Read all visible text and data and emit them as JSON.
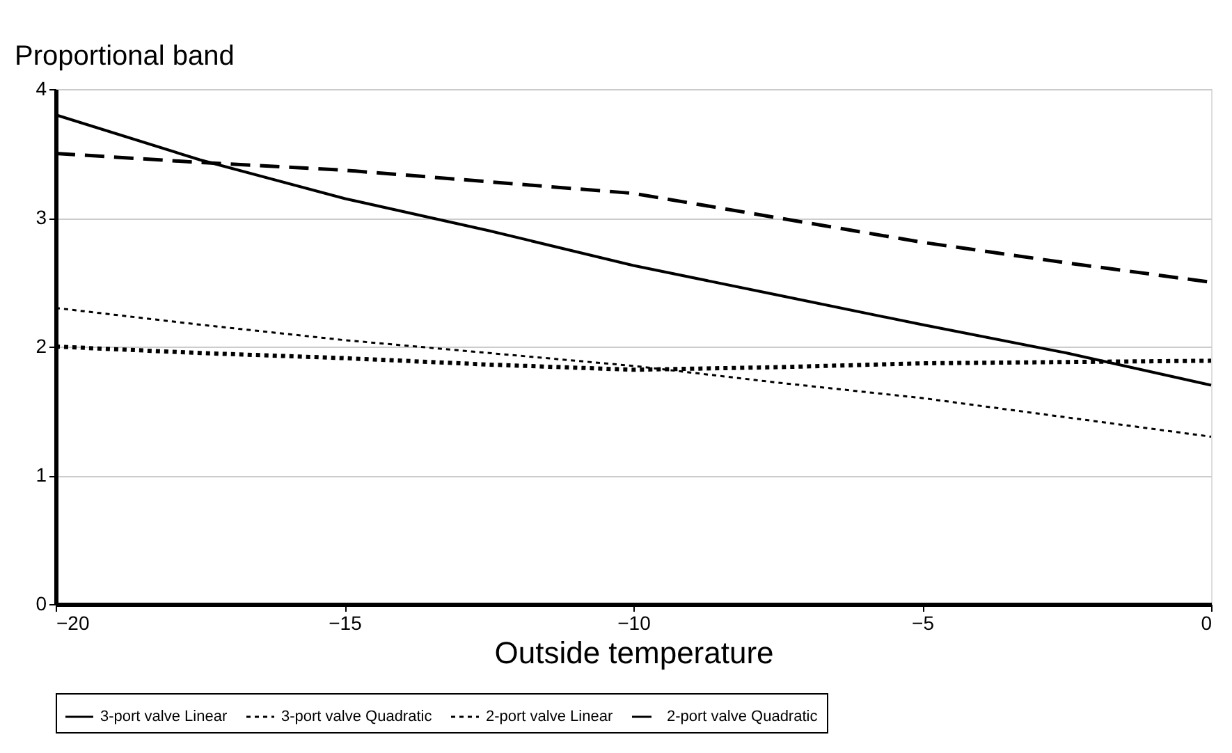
{
  "chart_data": {
    "type": "line",
    "xlabel": "Outside temperature",
    "ylabel": "Proportional band",
    "x": [
      -20,
      -17.5,
      -15,
      -12.5,
      -10,
      -7.5,
      -5,
      -2.5,
      0
    ],
    "series": [
      {
        "name": "3-port valve Linear",
        "color": "#000000",
        "line_style": "solid",
        "values": [
          3.8,
          3.45,
          3.15,
          2.9,
          2.63,
          2.4,
          2.17,
          1.95,
          1.7
        ]
      },
      {
        "name": "3-port valve Quadratic",
        "color": "#000000",
        "line_style": "dotted",
        "values": [
          2.0,
          1.95,
          1.91,
          1.86,
          1.82,
          1.84,
          1.87,
          1.88,
          1.89
        ]
      },
      {
        "name": "2-port valve Linear",
        "color": "#000000",
        "line_style": "dotted",
        "values": [
          2.3,
          2.17,
          2.05,
          1.95,
          1.85,
          1.72,
          1.6,
          1.45,
          1.3
        ]
      },
      {
        "name": "2-port valve Quadratic",
        "color": "#000000",
        "line_style": "dashed",
        "values": [
          3.5,
          3.43,
          3.37,
          3.28,
          3.19,
          3.0,
          2.81,
          2.65,
          2.5
        ]
      }
    ],
    "xlim": [
      -20,
      0
    ],
    "xticks": [
      -20,
      -15,
      -10,
      -5,
      0
    ],
    "ylim": [
      0,
      4
    ],
    "yticks": [
      0,
      1,
      2,
      3,
      4
    ],
    "grid": "y",
    "legend": "bottom",
    "marker": "none"
  }
}
